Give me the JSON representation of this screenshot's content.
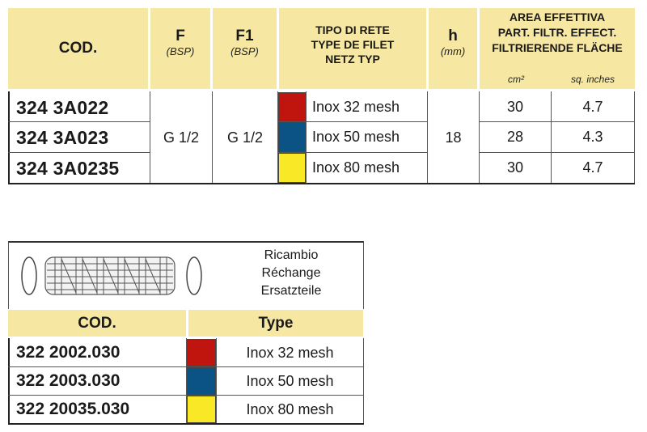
{
  "table1": {
    "headers": {
      "cod": "COD.",
      "f": "F",
      "f_unit": "(BSP)",
      "f1": "F1",
      "f1_unit": "(BSP)",
      "tipo": [
        "TIPO DI RETE",
        "TYPE DE FILET",
        "NETZ TYP"
      ],
      "h": "h",
      "h_unit": "(mm)",
      "area": [
        "AREA EFFETTIVA",
        "PART. FILTR. EFFECT.",
        "FILTRIERENDE FLÄCHE"
      ],
      "area_cm": "cm²",
      "area_sq": "sq. inches"
    },
    "rows": [
      {
        "code": "324 3A022",
        "mesh": "Inox 32 mesh",
        "cm2": "30",
        "sq": "4.7",
        "color": "#c0140f"
      },
      {
        "code": "324 3A023",
        "mesh": "Inox 50 mesh",
        "cm2": "28",
        "sq": "4.3",
        "color": "#0b5285"
      },
      {
        "code": "324 3A0235",
        "mesh": "Inox 80 mesh",
        "cm2": "30",
        "sq": "4.7",
        "color": "#f8e826"
      }
    ],
    "f_value": "G 1/2",
    "f1_value": "G 1/2",
    "h_value": "18"
  },
  "spare": {
    "label": [
      "Ricambio",
      "Réchange",
      "Ersatzteile"
    ],
    "headers": {
      "cod": "COD.",
      "type": "Type"
    },
    "rows": [
      {
        "code": "322 2002.030",
        "mesh": "Inox 32 mesh",
        "color": "#c0140f"
      },
      {
        "code": "322 2003.030",
        "mesh": "Inox 50 mesh",
        "color": "#0b5285"
      },
      {
        "code": "322 20035.030",
        "mesh": "Inox 80 mesh",
        "color": "#f8e826"
      }
    ]
  }
}
